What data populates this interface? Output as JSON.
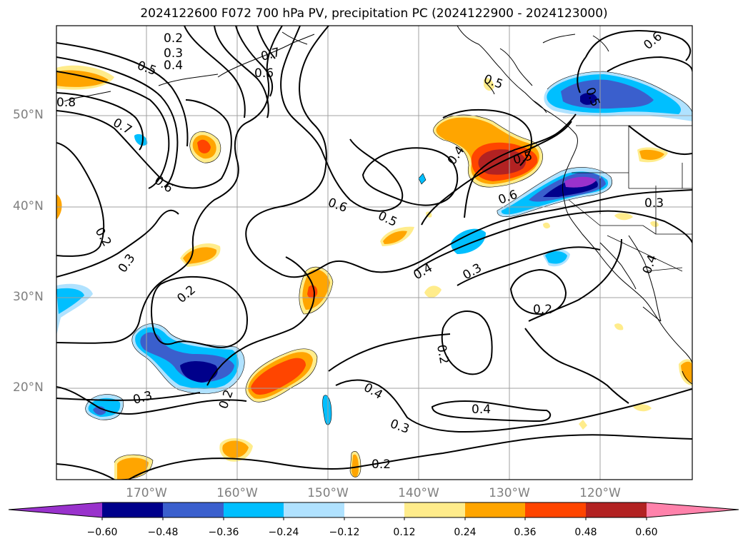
{
  "title": "2024122600 F072 700 hPa PV, precipitation PC (2024122900 - 2024123000)",
  "lat_labels": [
    "50°N",
    "40°N",
    "30°N",
    "20°N"
  ],
  "lon_labels": [
    "170°W",
    "160°W",
    "150°W",
    "140°W",
    "130°W",
    "120°W"
  ],
  "colorbar": {
    "ticks": [
      "−0.60",
      "−0.48",
      "−0.36",
      "−0.24",
      "−0.12",
      "0.12",
      "0.24",
      "0.36",
      "0.48",
      "0.60"
    ],
    "colors": [
      "#9932cc",
      "#00008b",
      "#3a5fcd",
      "#00bfff",
      "#b0e2ff",
      "#ffffff",
      "#ffec8b",
      "#ffa500",
      "#ff4500",
      "#b22222",
      "#ff82ab"
    ],
    "extend": "both"
  },
  "contour_labels": [
    "0.2",
    "0.3",
    "0.4",
    "0.5",
    "0.8",
    "0.7",
    "0.6",
    "0.7",
    "0.6",
    "0.2",
    "0.3",
    "0.2",
    "0.2",
    "0.3",
    "0.6",
    "0.5",
    "0.4",
    "0.5",
    "0.6",
    "0.4",
    "0.3",
    "0.2",
    "0.2",
    "0.4",
    "0.4",
    "0.3",
    "0.2",
    "0.3",
    "0.6",
    "0.5",
    "0.4",
    "0.5"
  ],
  "colors": {
    "coastline": "#000000",
    "grid": "#a0a0a0",
    "axis_label": "#7f7f7f"
  }
}
